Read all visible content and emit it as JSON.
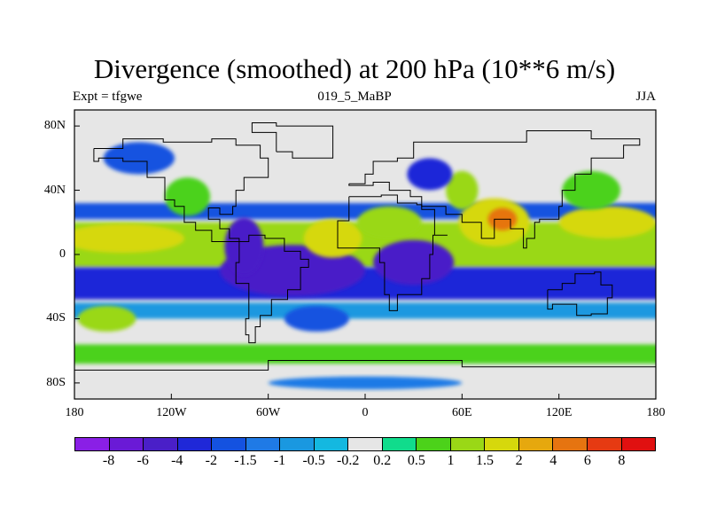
{
  "figure": {
    "title": "Divergence (smoothed) at 200 hPa (10**6 m/s)",
    "left_label": "Expt = tfgwe",
    "center_label": "019_5_MaBP",
    "right_label": "JJA"
  },
  "map": {
    "projection": "cylindrical equidistant",
    "lon_range": [
      -180,
      180
    ],
    "lat_range": [
      -90,
      90
    ],
    "lat_ticks": [
      {
        "label": "80N",
        "value": 80
      },
      {
        "label": "40N",
        "value": 40
      },
      {
        "label": "0",
        "value": 0
      },
      {
        "label": "40S",
        "value": -40
      },
      {
        "label": "80S",
        "value": -80
      }
    ],
    "lon_ticks": [
      {
        "label": "180",
        "value": -180
      },
      {
        "label": "120W",
        "value": -120
      },
      {
        "label": "60W",
        "value": -60
      },
      {
        "label": "0",
        "value": 0
      },
      {
        "label": "60E",
        "value": 60
      },
      {
        "label": "120E",
        "value": 120
      },
      {
        "label": "180",
        "value": 180
      }
    ],
    "fill_features": [
      {
        "kind": "band",
        "lat_from": -8,
        "lat_to": 20,
        "level": 11
      },
      {
        "kind": "band",
        "lat_from": -28,
        "lat_to": -8,
        "level": 3
      },
      {
        "kind": "band",
        "lat_from": 22,
        "lat_to": 32,
        "level": 4
      },
      {
        "kind": "band",
        "lat_from": -40,
        "lat_to": -30,
        "level": 6
      },
      {
        "kind": "band",
        "lat_from": -55,
        "lat_to": -44,
        "level": 8
      },
      {
        "kind": "band",
        "lat_from": -68,
        "lat_to": -56,
        "level": 10
      },
      {
        "kind": "blob",
        "lon": -150,
        "lat": 10,
        "dlon": 38,
        "dlat": 9,
        "level": 12
      },
      {
        "kind": "blob",
        "lon": -110,
        "lat": 36,
        "dlon": 14,
        "dlat": 12,
        "level": 10
      },
      {
        "kind": "blob",
        "lon": -45,
        "lat": -10,
        "dlon": 45,
        "dlat": 16,
        "level": 2
      },
      {
        "kind": "blob",
        "lon": -75,
        "lat": 5,
        "dlon": 12,
        "dlat": 18,
        "level": 2
      },
      {
        "kind": "blob",
        "lon": -20,
        "lat": 10,
        "dlon": 18,
        "dlat": 12,
        "level": 12
      },
      {
        "kind": "blob",
        "lon": 15,
        "lat": 20,
        "dlon": 20,
        "dlat": 10,
        "level": 11
      },
      {
        "kind": "blob",
        "lon": 30,
        "lat": -5,
        "dlon": 25,
        "dlat": 14,
        "level": 2
      },
      {
        "kind": "blob",
        "lon": 80,
        "lat": 20,
        "dlon": 22,
        "dlat": 15,
        "level": 12
      },
      {
        "kind": "blob",
        "lon": 85,
        "lat": 22,
        "dlon": 9,
        "dlat": 7,
        "level": 14
      },
      {
        "kind": "blob",
        "lon": 60,
        "lat": 40,
        "dlon": 10,
        "dlat": 12,
        "level": 11
      },
      {
        "kind": "blob",
        "lon": 40,
        "lat": 50,
        "dlon": 14,
        "dlat": 10,
        "level": 3
      },
      {
        "kind": "blob",
        "lon": 150,
        "lat": 20,
        "dlon": 30,
        "dlat": 10,
        "level": 12
      },
      {
        "kind": "blob",
        "lon": 140,
        "lat": 40,
        "dlon": 18,
        "dlat": 12,
        "level": 10
      },
      {
        "kind": "blob",
        "lon": -140,
        "lat": 60,
        "dlon": 22,
        "dlat": 10,
        "level": 4
      },
      {
        "kind": "blob",
        "lon": -30,
        "lat": -40,
        "dlon": 20,
        "dlat": 8,
        "level": 4
      },
      {
        "kind": "blob",
        "lon": -160,
        "lat": -40,
        "dlon": 18,
        "dlat": 8,
        "level": 11
      },
      {
        "kind": "blob",
        "lon": 0,
        "lat": -80,
        "dlon": 60,
        "dlat": 4,
        "level": 5
      }
    ]
  },
  "colorbar": {
    "colors": [
      "#8a1fe6",
      "#6a1ad6",
      "#4a1fc8",
      "#1f28d8",
      "#1452e0",
      "#1f7ae6",
      "#1a98e0",
      "#14b8e0",
      "#e6e6e6",
      "#10dc8c",
      "#4cd21a",
      "#9ad816",
      "#d6d80c",
      "#e6a80e",
      "#e67410",
      "#e63a12",
      "#e01010"
    ],
    "labels": [
      "-8",
      "-6",
      "-4",
      "-2",
      "-1.5",
      "-1",
      "-0.5",
      "-0.2",
      "0.2",
      "0.5",
      "1",
      "1.5",
      "2",
      "4",
      "6",
      "8"
    ]
  }
}
